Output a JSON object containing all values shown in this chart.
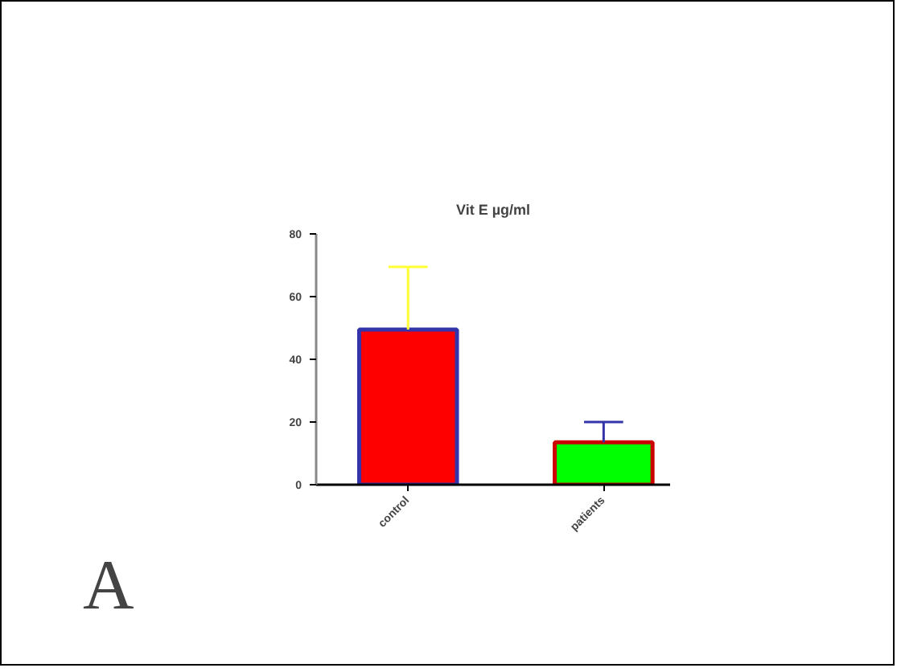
{
  "chart_data": {
    "type": "bar",
    "title": "Vit E µg/ml",
    "categories": [
      "control",
      "patients"
    ],
    "values": [
      49.5,
      13.5
    ],
    "colors": [
      "#ff0000",
      "#00ff00"
    ],
    "errors": [
      [
        49.5,
        69.5
      ],
      [
        13.5,
        20
      ]
    ],
    "ylim": [
      0,
      80
    ],
    "yticks": [
      0,
      20,
      40,
      60,
      80
    ],
    "grid": false,
    "annotations": [
      "A"
    ]
  }
}
